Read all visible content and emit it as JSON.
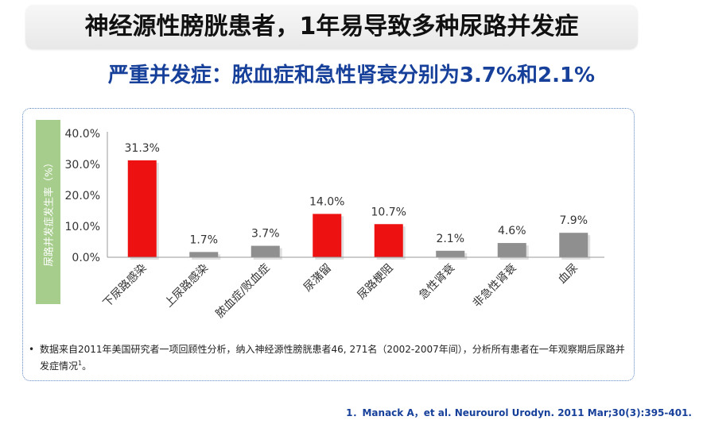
{
  "title": "神经源性膀胱患者，1年易导致多种尿路并发症",
  "subtitle": "严重并发症：脓血症和急性肾衰分别为3.7%和2.1%",
  "chart_data": {
    "type": "bar",
    "ylabel": "尿路并发症发生率（%）",
    "ylim": [
      0,
      40
    ],
    "yticks": [
      "40.0%",
      "30.0%",
      "20.0%",
      "10.0%",
      "0.0%"
    ],
    "ytick_values": [
      40,
      30,
      20,
      10,
      0
    ],
    "categories": [
      "下尿路感染",
      "上尿路感染",
      "脓血症/败血症",
      "尿潴留",
      "尿路梗阻",
      "急性肾衰",
      "非急性肾衰",
      "血尿"
    ],
    "values": [
      31.3,
      1.7,
      3.7,
      14.0,
      10.7,
      2.1,
      4.6,
      7.9
    ],
    "value_labels": [
      "31.3%",
      "1.7%",
      "3.7%",
      "14.0%",
      "10.7%",
      "2.1%",
      "4.6%",
      "7.9%"
    ],
    "highlight": [
      true,
      false,
      false,
      true,
      true,
      false,
      false,
      false
    ],
    "colors": {
      "highlight": "#ee1111",
      "normal": "#8f8f8f"
    }
  },
  "note": {
    "bullet": "•",
    "text_before": "数据来自2011年美国研究者一项回顾性分析，纳入神经源性膀胱患者46, 271名（2002-2007年间），分析所有患者在一年观察期后尿路并发症情况",
    "superscript": "1",
    "text_after": "。"
  },
  "reference": "1．Manack A，et al. Neurourol Urodyn. 2011 Mar;30(3):395-401."
}
